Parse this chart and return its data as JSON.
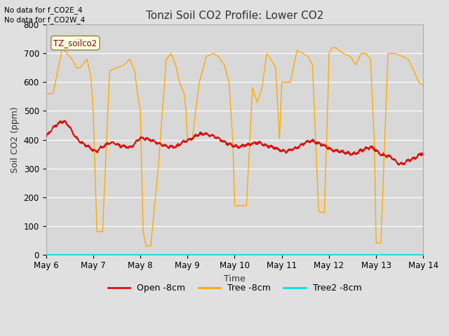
{
  "title": "Tonzi Soil CO2 Profile: Lower CO2",
  "xlabel": "Time",
  "ylabel": "Soil CO2 (ppm)",
  "ylim": [
    0,
    800
  ],
  "yticks": [
    0,
    100,
    200,
    300,
    400,
    500,
    600,
    700,
    800
  ],
  "note1": "No data for f_CO2E_4",
  "note2": "No data for f_CO2W_4",
  "legend_label": "TZ_soilco2",
  "fig_facecolor": "#e0e0e0",
  "plot_facecolor": "#d8d8d8",
  "grid_color": "#ffffff",
  "open_color": "#dd1111",
  "tree_color": "#ffaa00",
  "tree2_color": "#00ddee",
  "legend_entries": [
    "Open -8cm",
    "Tree -8cm",
    "Tree2 -8cm"
  ],
  "x_day_labels": [
    "May 6",
    "May 7",
    "May 8",
    "May 9",
    "May 10",
    "May 11",
    "May 12",
    "May 13",
    "May 14"
  ],
  "orange_x": [
    0.0,
    0.15,
    0.35,
    0.55,
    0.65,
    0.72,
    0.87,
    0.95,
    1.0,
    1.08,
    1.2,
    1.35,
    1.5,
    1.65,
    1.78,
    1.88,
    1.94,
    2.0,
    2.06,
    2.12,
    2.22,
    2.38,
    2.55,
    2.65,
    2.75,
    2.83,
    2.93,
    2.97,
    3.0,
    3.1,
    3.25,
    3.4,
    3.55,
    3.65,
    3.78,
    3.88,
    3.96,
    4.0,
    4.1,
    4.25,
    4.38,
    4.48,
    4.58,
    4.68,
    4.77,
    4.87,
    4.95,
    5.0,
    5.08,
    5.18,
    5.32,
    5.45,
    5.55,
    5.65,
    5.78,
    5.9,
    5.97,
    6.0,
    6.06,
    6.15,
    6.3,
    6.45,
    6.57,
    6.68,
    6.78,
    6.88,
    6.96,
    7.0,
    7.1,
    7.25,
    7.4,
    7.55,
    7.68,
    7.8,
    7.9,
    8.0
  ],
  "orange_y": [
    560,
    560,
    720,
    680,
    650,
    650,
    680,
    620,
    500,
    80,
    80,
    640,
    650,
    660,
    680,
    640,
    560,
    500,
    80,
    30,
    30,
    300,
    680,
    700,
    660,
    600,
    560,
    500,
    400,
    400,
    600,
    690,
    700,
    690,
    660,
    600,
    400,
    170,
    170,
    170,
    580,
    530,
    580,
    700,
    680,
    650,
    400,
    600,
    600,
    600,
    710,
    700,
    690,
    660,
    150,
    145,
    500,
    700,
    720,
    720,
    700,
    690,
    660,
    700,
    700,
    680,
    400,
    40,
    40,
    700,
    700,
    690,
    680,
    640,
    600,
    590
  ],
  "red_x": [
    0.0,
    0.15,
    0.3,
    0.45,
    0.55,
    0.65,
    0.75,
    0.85,
    0.95,
    1.05,
    1.15,
    1.25,
    1.4,
    1.55,
    1.7,
    1.85,
    1.95,
    2.05,
    2.2,
    2.35,
    2.5,
    2.65,
    2.8,
    2.95,
    3.05,
    3.2,
    3.35,
    3.5,
    3.65,
    3.8,
    3.95,
    4.05,
    4.2,
    4.35,
    4.5,
    4.65,
    4.8,
    4.95,
    5.05,
    5.2,
    5.35,
    5.5,
    5.65,
    5.8,
    5.95,
    6.05,
    6.2,
    6.35,
    6.5,
    6.65,
    6.8,
    6.95,
    7.05,
    7.2,
    7.35,
    7.5,
    7.65,
    7.8,
    7.95,
    8.0
  ],
  "red_y": [
    410,
    440,
    460,
    455,
    430,
    405,
    390,
    380,
    370,
    360,
    370,
    380,
    390,
    380,
    375,
    380,
    400,
    405,
    400,
    390,
    380,
    375,
    380,
    395,
    400,
    415,
    420,
    415,
    405,
    390,
    380,
    375,
    380,
    385,
    390,
    380,
    375,
    365,
    360,
    365,
    375,
    390,
    395,
    385,
    375,
    365,
    360,
    355,
    350,
    360,
    370,
    370,
    355,
    345,
    335,
    315,
    325,
    335,
    350,
    352
  ]
}
